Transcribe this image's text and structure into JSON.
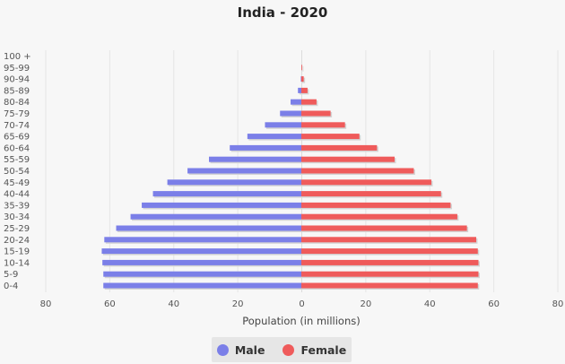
{
  "chart_data": {
    "type": "bar",
    "orientation": "horizontal-population-pyramid",
    "title": "India - 2020",
    "xlabel": "Population (in millions)",
    "ylabel": "",
    "xlim": [
      -80,
      80
    ],
    "x_ticks": [
      -80,
      -60,
      -40,
      -20,
      0,
      20,
      40,
      60,
      80
    ],
    "x_tick_labels": [
      "80",
      "60",
      "40",
      "20",
      "0",
      "20",
      "40",
      "60",
      "80"
    ],
    "categories": [
      "0-4",
      "5-9",
      "10-14",
      "15-19",
      "20-24",
      "25-29",
      "30-34",
      "35-39",
      "40-44",
      "45-49",
      "50-54",
      "55-59",
      "60-64",
      "65-69",
      "70-74",
      "75-79",
      "80-84",
      "85-89",
      "90-94",
      "95-99",
      "100 +"
    ],
    "series": [
      {
        "name": "Male",
        "color": "#7b7fe8",
        "values": [
          62.0,
          62.0,
          62.3,
          62.5,
          61.7,
          58.0,
          53.5,
          50.0,
          46.5,
          42.0,
          35.7,
          29.0,
          22.5,
          17.0,
          11.5,
          6.8,
          3.5,
          1.2,
          0.3,
          0.05,
          0.0
        ]
      },
      {
        "name": "Female",
        "color": "#ef5b5b",
        "values": [
          55.0,
          55.2,
          55.2,
          55.0,
          54.5,
          51.6,
          48.6,
          46.5,
          43.5,
          40.5,
          35.0,
          29.0,
          23.5,
          18.0,
          13.5,
          9.0,
          4.6,
          1.8,
          0.6,
          0.1,
          0.0
        ]
      }
    ],
    "grid": true,
    "legend_position": "bottom"
  },
  "legend": {
    "items": [
      {
        "label": "Male",
        "color": "#7b7fe8"
      },
      {
        "label": "Female",
        "color": "#ef5b5b"
      }
    ]
  }
}
